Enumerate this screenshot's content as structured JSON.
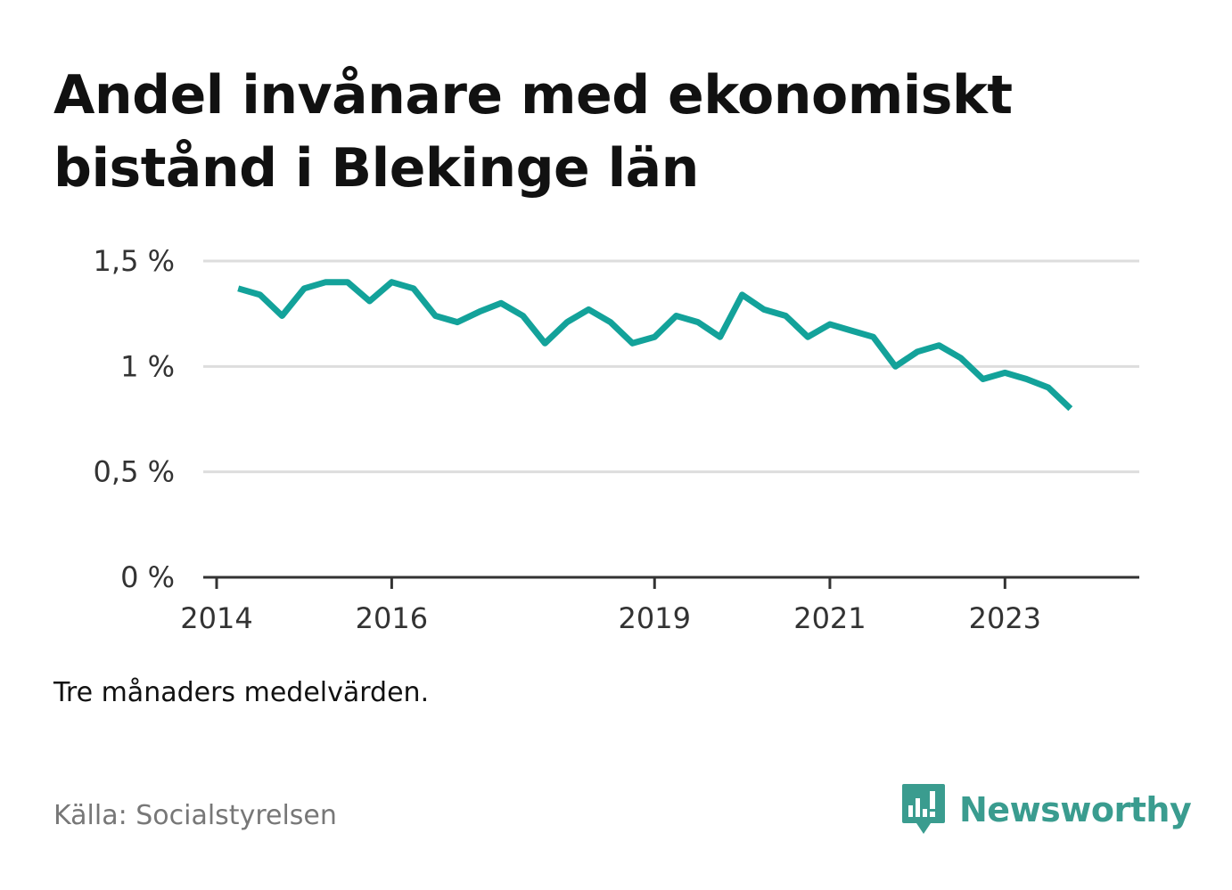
{
  "title": "Andel invånare med ekonomiskt bistånd i Blekinge län",
  "note": "Tre månaders medelvärden.",
  "source": "Källa: Socialstyrelsen",
  "brand": {
    "name": "Newsworthy",
    "icon": "bar-chart-speech-bubble-icon",
    "color": "#3a9c8f"
  },
  "colors": {
    "line": "#13a29a",
    "grid": "#dddddd",
    "axis": "#333333"
  },
  "chart_data": {
    "type": "line",
    "title": "Andel invånare med ekonomiskt bistånd i Blekinge län",
    "xlabel": "",
    "ylabel": "",
    "ylim": [
      0,
      1.5
    ],
    "xlim": [
      "2014-01-01",
      "2024-04-01"
    ],
    "y_ticks": [
      {
        "value": 0,
        "label": "0 %"
      },
      {
        "value": 0.5,
        "label": "0,5 %"
      },
      {
        "value": 1,
        "label": "1 %"
      },
      {
        "value": 1.5,
        "label": "1,5 %"
      }
    ],
    "x_ticks": [
      {
        "date": "2014-01-01",
        "label": "2014"
      },
      {
        "date": "2016-01-01",
        "label": "2016"
      },
      {
        "date": "2019-01-01",
        "label": "2019"
      },
      {
        "date": "2021-01-01",
        "label": "2021"
      },
      {
        "date": "2023-01-01",
        "label": "2023"
      }
    ],
    "grid": true,
    "series": [
      {
        "dates": [
          "2014-04-01",
          "2014-07-01",
          "2014-10-01",
          "2015-01-01",
          "2015-04-01",
          "2015-07-01",
          "2015-10-01",
          "2016-01-01",
          "2016-04-01",
          "2016-07-01",
          "2016-10-01",
          "2017-01-01",
          "2017-04-01",
          "2017-07-01",
          "2017-10-01",
          "2018-01-01",
          "2018-04-01",
          "2018-07-01",
          "2018-10-01",
          "2019-01-01",
          "2019-04-01",
          "2019-07-01",
          "2019-10-01",
          "2020-01-01",
          "2020-04-01",
          "2020-07-01",
          "2020-10-01",
          "2021-01-01",
          "2021-04-01",
          "2021-07-01",
          "2021-10-01",
          "2022-01-01",
          "2022-04-01",
          "2022-07-01",
          "2022-10-01",
          "2023-01-01",
          "2023-04-01",
          "2023-07-01",
          "2023-10-01"
        ],
        "values": [
          1.37,
          1.34,
          1.24,
          1.37,
          1.4,
          1.4,
          1.31,
          1.4,
          1.37,
          1.24,
          1.21,
          1.26,
          1.3,
          1.24,
          1.11,
          1.21,
          1.27,
          1.21,
          1.11,
          1.14,
          1.24,
          1.21,
          1.14,
          1.34,
          1.27,
          1.24,
          1.14,
          1.2,
          1.17,
          1.14,
          1.0,
          1.07,
          1.1,
          1.04,
          0.94,
          0.97,
          0.94,
          0.9,
          0.8
        ]
      }
    ]
  }
}
